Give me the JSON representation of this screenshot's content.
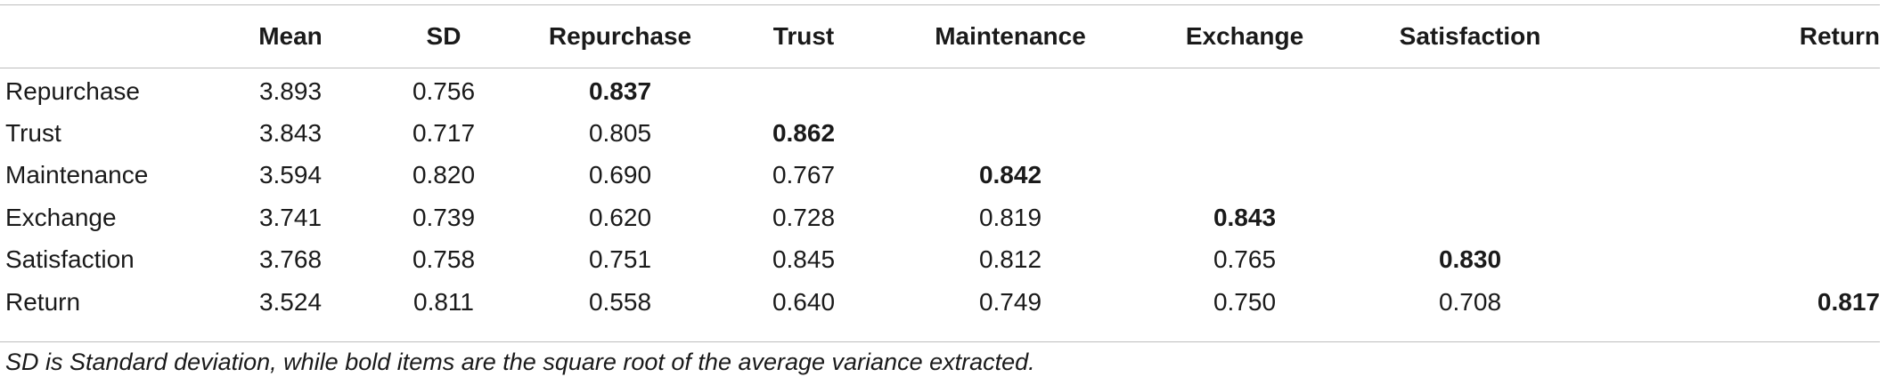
{
  "table": {
    "columns": [
      "",
      "Mean",
      "SD",
      "Repurchase",
      "Trust",
      "Maintenance",
      "Exchange",
      "Satisfaction",
      "Return"
    ],
    "rows": [
      {
        "label": "Repurchase",
        "cells": [
          "3.893",
          "0.756",
          "0.837",
          "",
          "",
          "",
          "",
          ""
        ],
        "bold_index": 2
      },
      {
        "label": "Trust",
        "cells": [
          "3.843",
          "0.717",
          "0.805",
          "0.862",
          "",
          "",
          "",
          ""
        ],
        "bold_index": 3
      },
      {
        "label": "Maintenance",
        "cells": [
          "3.594",
          "0.820",
          "0.690",
          "0.767",
          "0.842",
          "",
          "",
          ""
        ],
        "bold_index": 4
      },
      {
        "label": "Exchange",
        "cells": [
          "3.741",
          "0.739",
          "0.620",
          "0.728",
          "0.819",
          "0.843",
          "",
          ""
        ],
        "bold_index": 5
      },
      {
        "label": "Satisfaction",
        "cells": [
          "3.768",
          "0.758",
          "0.751",
          "0.845",
          "0.812",
          "0.765",
          "0.830",
          ""
        ],
        "bold_index": 6
      },
      {
        "label": "Return",
        "cells": [
          "3.524",
          "0.811",
          "0.558",
          "0.640",
          "0.749",
          "0.750",
          "0.708",
          "0.817"
        ],
        "bold_index": 7
      }
    ]
  },
  "footnote": "SD is Standard deviation, while bold items are the square root of the average variance extracted."
}
